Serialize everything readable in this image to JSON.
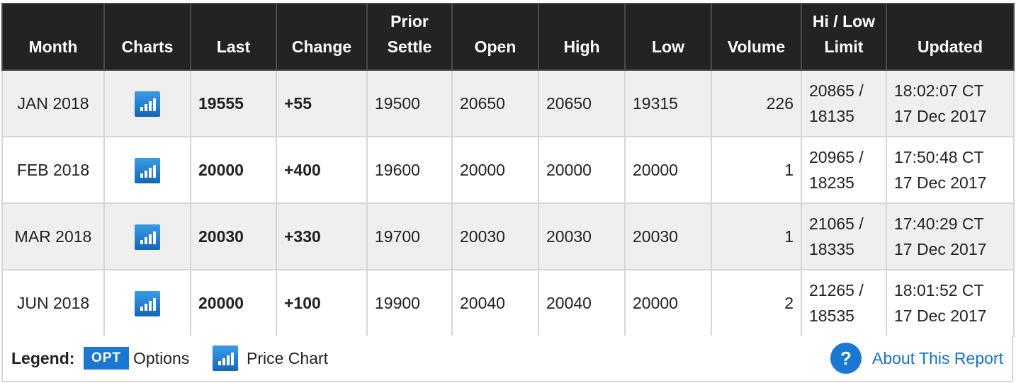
{
  "columns": {
    "month": "Month",
    "charts": "Charts",
    "last": "Last",
    "change": "Change",
    "prior_settle_line1": "Prior",
    "prior_settle_line2": "Settle",
    "open": "Open",
    "high": "High",
    "low": "Low",
    "volume": "Volume",
    "limit_line1": "Hi / Low",
    "limit_line2": "Limit",
    "updated": "Updated"
  },
  "rows": [
    {
      "month": "JAN 2018",
      "last": "19555",
      "change": "+55",
      "prior_settle": "19500",
      "open": "20650",
      "high": "20650",
      "low": "19315",
      "volume": "226",
      "limit_hi": "20865 /",
      "limit_low": "18135",
      "updated_time": "18:02:07 CT",
      "updated_date": "17 Dec 2017"
    },
    {
      "month": "FEB 2018",
      "last": "20000",
      "change": "+400",
      "prior_settle": "19600",
      "open": "20000",
      "high": "20000",
      "low": "20000",
      "volume": "1",
      "limit_hi": "20965 /",
      "limit_low": "18235",
      "updated_time": "17:50:48 CT",
      "updated_date": "17 Dec 2017"
    },
    {
      "month": "MAR 2018",
      "last": "20030",
      "change": "+330",
      "prior_settle": "19700",
      "open": "20030",
      "high": "20030",
      "low": "20030",
      "volume": "1",
      "limit_hi": "21065 /",
      "limit_low": "18335",
      "updated_time": "17:40:29 CT",
      "updated_date": "17 Dec 2017"
    },
    {
      "month": "JUN 2018",
      "last": "20000",
      "change": "+100",
      "prior_settle": "19900",
      "open": "20040",
      "high": "20040",
      "low": "20000",
      "volume": "2",
      "limit_hi": "21265 /",
      "limit_low": "18535",
      "updated_time": "18:01:52 CT",
      "updated_date": "17 Dec 2017"
    }
  ],
  "legend": {
    "title": "Legend:",
    "opt_badge": "OPT",
    "opt_label": "Options",
    "chart_label": "Price Chart",
    "help_glyph": "?",
    "about_link": "About This Report"
  },
  "colors": {
    "header_bg": "#232323",
    "odd_row_bg": "#efefef",
    "change_positive": "#2e8b2e",
    "accent_blue": "#1a78d2"
  },
  "icons": {
    "chart": "bar-chart-icon",
    "help": "question-circle-icon"
  }
}
